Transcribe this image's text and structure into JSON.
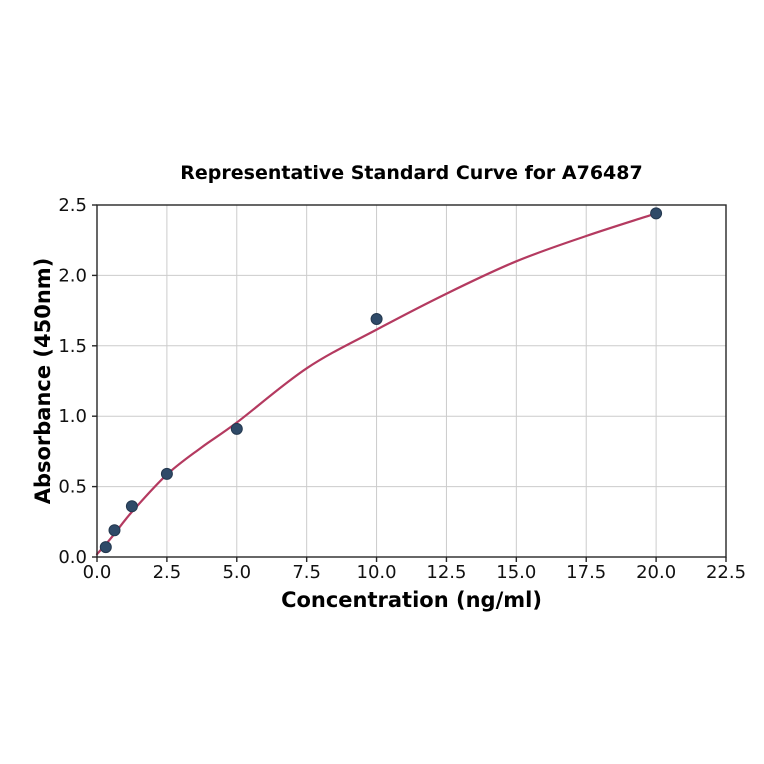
{
  "chart_data": {
    "type": "scatter",
    "title": "Representative Standard Curve for A76487",
    "xlabel": "Concentration (ng/ml)",
    "ylabel": "Absorbance (450nm)",
    "xlim": [
      0,
      22.5
    ],
    "ylim": [
      0,
      2.5
    ],
    "grid": true,
    "legend": "none",
    "xticks": [
      0,
      2.5,
      5,
      7.5,
      10,
      12.5,
      15,
      17.5,
      20,
      22.5
    ],
    "xtick_labels": [
      "0.0",
      "2.5",
      "5.0",
      "7.5",
      "10.0",
      "12.5",
      "15.0",
      "17.5",
      "20.0",
      "22.5"
    ],
    "yticks": [
      0,
      0.5,
      1,
      1.5,
      2,
      2.5
    ],
    "ytick_labels": [
      "0.0",
      "0.5",
      "1.0",
      "1.5",
      "2.0",
      "2.5"
    ],
    "series": [
      {
        "name": "standards",
        "kind": "scatter",
        "x": [
          0.313,
          0.625,
          1.25,
          2.5,
          5,
          10,
          20
        ],
        "y": [
          0.07,
          0.19,
          0.36,
          0.59,
          0.91,
          1.69,
          2.44
        ]
      },
      {
        "name": "fitted-curve",
        "kind": "line",
        "points": [
          [
            0,
            0.02
          ],
          [
            0.313,
            0.09
          ],
          [
            0.625,
            0.165
          ],
          [
            1.25,
            0.32
          ],
          [
            2.5,
            0.585
          ],
          [
            3.75,
            0.78
          ],
          [
            5,
            0.955
          ],
          [
            7.5,
            1.34
          ],
          [
            10,
            1.615
          ],
          [
            12.5,
            1.87
          ],
          [
            15,
            2.1
          ],
          [
            17.5,
            2.28
          ],
          [
            20,
            2.44
          ]
        ]
      }
    ],
    "colors": {
      "marker_fill": "#2f4a68",
      "marker_edge": "#24384f",
      "curve": "#b43a60",
      "grid": "#cccccc",
      "spine": "#262626",
      "text": "#000000"
    }
  }
}
